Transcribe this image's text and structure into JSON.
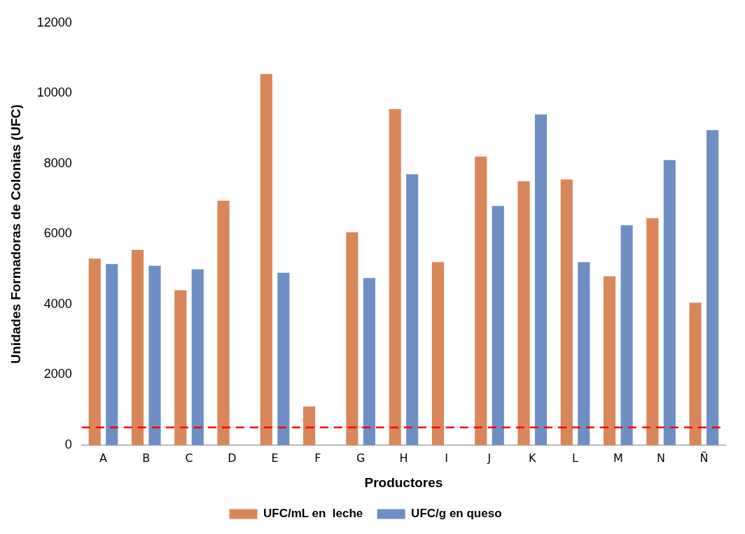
{
  "chart_data": {
    "type": "bar",
    "xlabel": "Productores",
    "ylabel": "Unidades Formadoras de Colonias (UFC)",
    "categories": [
      "A",
      "B",
      "C",
      "D",
      "E",
      "F",
      "G",
      "H",
      "I",
      "J",
      "K",
      "L",
      "M",
      "N",
      "Ñ"
    ],
    "series": [
      {
        "name": "UFC/mL en  leche",
        "color": "#d9865a",
        "values": [
          5300,
          5550,
          4400,
          6950,
          10550,
          1100,
          6050,
          9550,
          5200,
          8200,
          7500,
          7550,
          4800,
          6450,
          4050
        ]
      },
      {
        "name": "UFC/g en queso",
        "color": "#6f8fc4",
        "values": [
          5150,
          5100,
          5000,
          null,
          4900,
          null,
          4750,
          7700,
          null,
          6800,
          9400,
          5200,
          6250,
          8100,
          8950
        ]
      }
    ],
    "ylim": [
      0,
      12000
    ],
    "yticks": [
      0,
      2000,
      4000,
      6000,
      8000,
      10000,
      12000
    ],
    "grid": false,
    "legend": "bottom",
    "ref_lines": [
      {
        "axis": "y",
        "value": 500,
        "color": "#ff0000",
        "line_style": "dashed"
      }
    ]
  }
}
